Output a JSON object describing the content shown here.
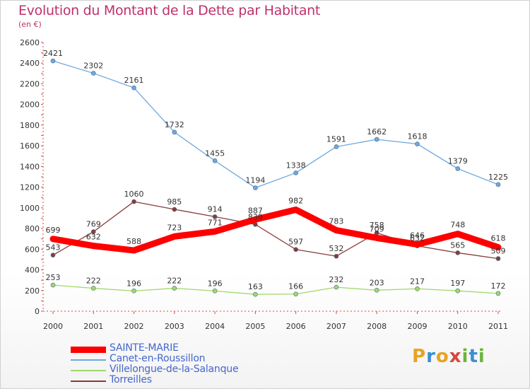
{
  "title": "Evolution du Montant de la Dette par Habitant",
  "subtitle": "(en €)",
  "logo": "Proxiti",
  "chart_data": {
    "type": "line",
    "title": "Evolution du Montant de la Dette par Habitant",
    "subtitle": "(en €)",
    "xlabel": "",
    "ylabel": "",
    "x": [
      "2000",
      "2001",
      "2002",
      "2003",
      "2004",
      "2005",
      "2006",
      "2007",
      "2008",
      "2009",
      "2010",
      "2011"
    ],
    "ylim": [
      0,
      2600
    ],
    "yticks": [
      "0",
      "200",
      "400",
      "600",
      "800",
      "1000",
      "1200",
      "1400",
      "1600",
      "1800",
      "2000",
      "2200",
      "2400",
      "2600"
    ],
    "grid": false,
    "legend_position": "bottom-left",
    "series": [
      {
        "name": "SAINTE-MARIE",
        "color": "#ff0000",
        "values": [
          699,
          632,
          588,
          723,
          771,
          887,
          982,
          783,
          709,
          646,
          748,
          618
        ],
        "labels": [
          "699",
          "632",
          "588",
          "723",
          "771",
          "887",
          "982",
          "783",
          "709",
          "646",
          "748",
          "618"
        ]
      },
      {
        "name": "Canet-en-Roussillon",
        "color": "#6fa8dc",
        "values": [
          2421,
          2302,
          2161,
          1732,
          1455,
          1194,
          1338,
          1591,
          1662,
          1618,
          1379,
          1225
        ],
        "labels": [
          "2421",
          "2302",
          "2161",
          "1732",
          "1455",
          "1194",
          "1338",
          "1591",
          "1662",
          "1618",
          "1379",
          "1225"
        ]
      },
      {
        "name": "Villelongue-de-la-Salanque",
        "color": "#a2d86a",
        "values": [
          253,
          222,
          196,
          222,
          196,
          163,
          166,
          232,
          203,
          217,
          197,
          172
        ],
        "labels": [
          "253",
          "222",
          "196",
          "222",
          "196",
          "163",
          "166",
          "232",
          "203",
          "217",
          "197",
          "172"
        ]
      },
      {
        "name": "Torreilles",
        "color": "#8b3a3a",
        "values": [
          543,
          769,
          1060,
          985,
          914,
          839,
          597,
          532,
          758,
          632,
          565,
          509
        ],
        "labels": [
          "543",
          "769",
          "1060",
          "985",
          "914",
          "839",
          "597",
          "532",
          "758",
          "632",
          "565",
          "509"
        ]
      }
    ]
  }
}
